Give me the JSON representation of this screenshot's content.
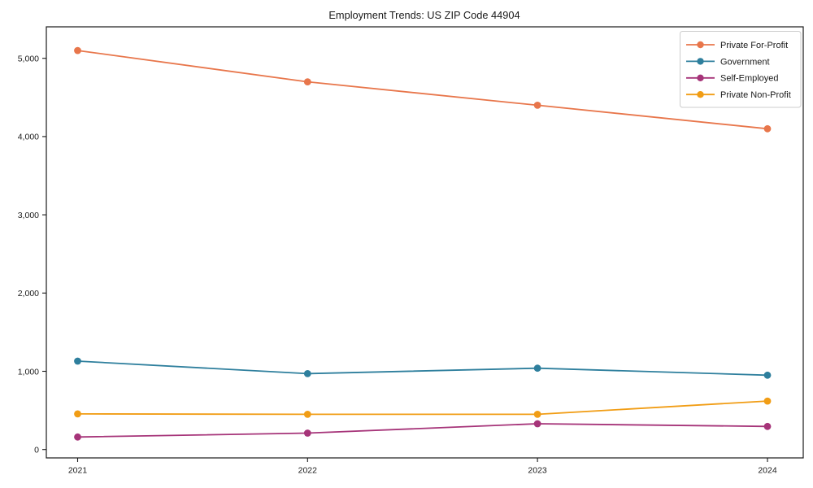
{
  "figure": {
    "title": "Employment Trends: US ZIP Code 44904"
  },
  "chart_data": {
    "type": "line",
    "title": "Employment Trends: US ZIP Code 44904",
    "x": [
      "2021",
      "2022",
      "2023",
      "2024"
    ],
    "series": [
      {
        "name": "Private For-Profit",
        "color": "#e8764b",
        "values": [
          5100,
          4700,
          4400,
          4100
        ]
      },
      {
        "name": "Government",
        "color": "#2e7f9d",
        "values": [
          1130,
          970,
          1040,
          950
        ]
      },
      {
        "name": "Self-Employed",
        "color": "#a63479",
        "values": [
          160,
          210,
          330,
          295
        ]
      },
      {
        "name": "Private Non-Profit",
        "color": "#f19d15",
        "values": [
          455,
          450,
          450,
          620
        ]
      }
    ],
    "xlabel": "",
    "ylabel": "",
    "ylim": [
      0,
      5400
    ],
    "yticks": [
      0,
      1000,
      2000,
      3000,
      4000,
      5000
    ],
    "ytick_labels": [
      "0",
      "1,000",
      "2,000",
      "3,000",
      "4,000",
      "5,000"
    ],
    "xtick_labels": [
      "2021",
      "2022",
      "2023",
      "2024"
    ],
    "legend": {
      "position": "upper right",
      "entries": [
        "Private For-Profit",
        "Government",
        "Self-Employed",
        "Private Non-Profit"
      ]
    },
    "grid": false,
    "marker": "o",
    "axis_color": "#1a1a1a",
    "background_color": "#ffffff"
  }
}
